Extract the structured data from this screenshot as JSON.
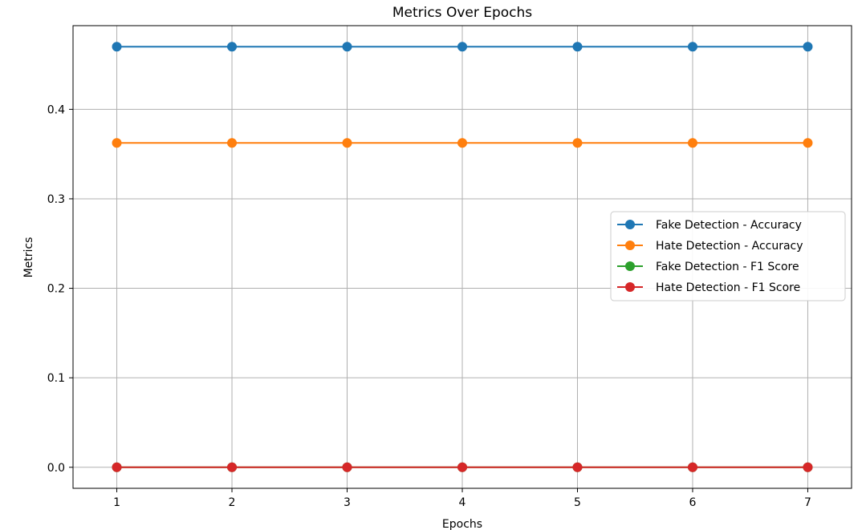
{
  "chart_data": {
    "type": "line",
    "title": "Metrics Over Epochs",
    "xlabel": "Epochs",
    "ylabel": "Metrics",
    "x": [
      1,
      2,
      3,
      4,
      5,
      6,
      7
    ],
    "xlim": [
      0.62,
      7.38
    ],
    "ylim": [
      -0.0235,
      0.4935
    ],
    "xticks": [
      1,
      2,
      3,
      4,
      5,
      6,
      7
    ],
    "yticks": [
      0.0,
      0.1,
      0.2,
      0.3,
      0.4
    ],
    "ytick_labels": [
      "0.0",
      "0.1",
      "0.2",
      "0.3",
      "0.4"
    ],
    "grid": true,
    "legend_position": "center-right",
    "series": [
      {
        "name": "Fake Detection - Accuracy",
        "color": "#1f77b4",
        "marker": "circle",
        "values": [
          0.47,
          0.47,
          0.47,
          0.47,
          0.47,
          0.47,
          0.47
        ]
      },
      {
        "name": "Hate Detection - Accuracy",
        "color": "#ff7f0e",
        "marker": "circle",
        "values": [
          0.3625,
          0.3625,
          0.3625,
          0.3625,
          0.3625,
          0.3625,
          0.3625
        ]
      },
      {
        "name": "Fake Detection - F1 Score",
        "color": "#2ca02c",
        "marker": "circle",
        "values": [
          0,
          0,
          0,
          0,
          0,
          0,
          0
        ]
      },
      {
        "name": "Hate Detection - F1 Score",
        "color": "#d62728",
        "marker": "circle",
        "values": [
          0,
          0,
          0,
          0,
          0,
          0,
          0
        ]
      }
    ]
  }
}
